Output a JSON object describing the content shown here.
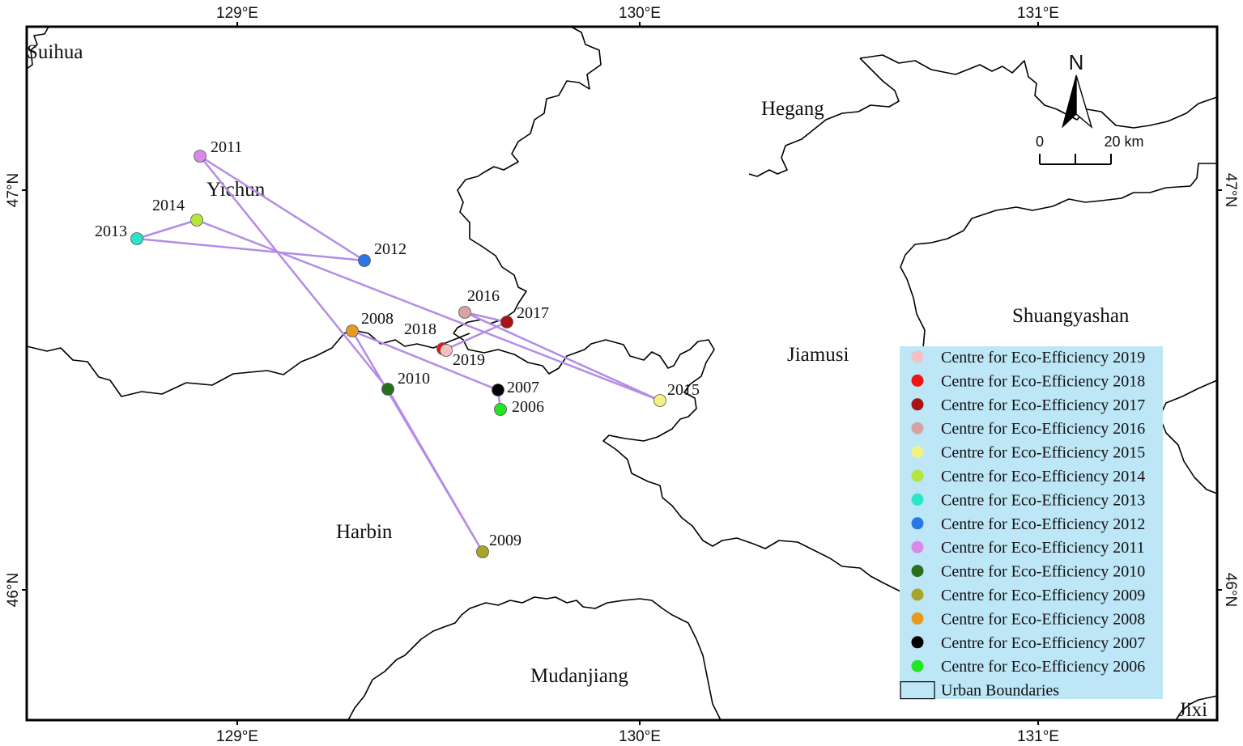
{
  "map": {
    "lon_labels": [
      "129°E",
      "130°E",
      "131°E"
    ],
    "lat_labels": [
      "47°N",
      "46°N"
    ],
    "cities": {
      "suihua": "Suihua",
      "yichun": "Yichun",
      "hegang": "Hegang",
      "shuangyashan": "Shuangyashan",
      "jiamusi": "Jiamusi",
      "harbin": "Harbin",
      "mudanjiang": "Mudanjiang",
      "jixi": "Jixi"
    },
    "scale_bar": {
      "start": "0",
      "end": "20 km"
    },
    "north_label": "N",
    "track_color": "#b48ce6",
    "centres": [
      {
        "year": "2006",
        "color": "#22e622"
      },
      {
        "year": "2007",
        "color": "#000000"
      },
      {
        "year": "2008",
        "color": "#e69a1e"
      },
      {
        "year": "2009",
        "color": "#a8a428"
      },
      {
        "year": "2010",
        "color": "#2a6e22"
      },
      {
        "year": "2011",
        "color": "#d98ae6"
      },
      {
        "year": "2012",
        "color": "#2a78e6"
      },
      {
        "year": "2013",
        "color": "#2ae6c8"
      },
      {
        "year": "2014",
        "color": "#b4e63c"
      },
      {
        "year": "2015",
        "color": "#f2f282"
      },
      {
        "year": "2016",
        "color": "#d8a2a2"
      },
      {
        "year": "2017",
        "color": "#a81414"
      },
      {
        "year": "2018",
        "color": "#f01414"
      },
      {
        "year": "2019",
        "color": "#f4c0c0"
      }
    ],
    "legend": {
      "background": "#bde6f6",
      "items": [
        {
          "label": "Centre for Eco-Efficiency 2019",
          "color": "#f4c0c0"
        },
        {
          "label": "Centre for Eco-Efficiency 2018",
          "color": "#f01414"
        },
        {
          "label": "Centre for Eco-Efficiency 2017",
          "color": "#a81414"
        },
        {
          "label": "Centre for Eco-Efficiency 2016",
          "color": "#d8a2a2"
        },
        {
          "label": "Centre for Eco-Efficiency 2015",
          "color": "#f2f282"
        },
        {
          "label": "Centre for Eco-Efficiency 2014",
          "color": "#b4e63c"
        },
        {
          "label": "Centre for Eco-Efficiency 2013",
          "color": "#2ae6c8"
        },
        {
          "label": "Centre for Eco-Efficiency 2012",
          "color": "#2a78e6"
        },
        {
          "label": "Centre for Eco-Efficiency 2011",
          "color": "#d98ae6"
        },
        {
          "label": "Centre for Eco-Efficiency 2010",
          "color": "#2a6e22"
        },
        {
          "label": "Centre for Eco-Efficiency 2009",
          "color": "#a8a428"
        },
        {
          "label": "Centre for Eco-Efficiency 2008",
          "color": "#e69a1e"
        },
        {
          "label": "Centre for Eco-Efficiency 2007",
          "color": "#000000"
        },
        {
          "label": "Centre for Eco-Efficiency 2006",
          "color": "#22e622"
        }
      ],
      "boundary_label": "Urban Boundaries"
    }
  }
}
